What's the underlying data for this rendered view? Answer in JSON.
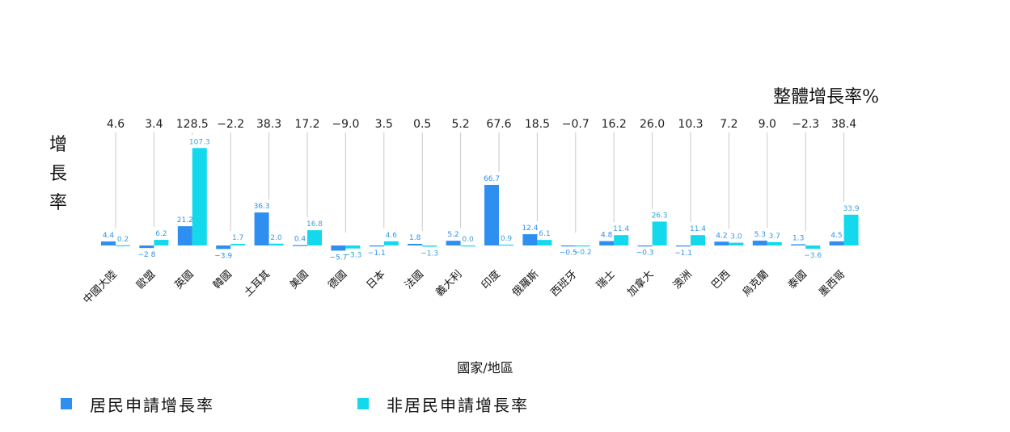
{
  "chart_data": {
    "type": "bar",
    "title": "整體增長率%",
    "ylabel": "增長率",
    "xlabel": "國家/地區",
    "categories": [
      "中國大陸",
      "歐盟",
      "英國",
      "韓國",
      "土耳其",
      "美國",
      "德國",
      "日本",
      "法國",
      "義大利",
      "印度",
      "俄羅斯",
      "西班牙",
      "瑞士",
      "加拿大",
      "澳洲",
      "巴西",
      "烏克蘭",
      "泰國",
      "墨西哥"
    ],
    "overall_growth": [
      "4.6",
      "3.4",
      "128.5",
      "−2.2",
      "38.3",
      "17.2",
      "−9.0",
      "3.5",
      "0.5",
      "5.2",
      "67.6",
      "18.5",
      "−0.7",
      "16.2",
      "26.0",
      "10.3",
      "7.2",
      "9.0",
      "−2.3",
      "38.4"
    ],
    "series": [
      {
        "name": "居民申請增長率",
        "color": "#2f8ff0",
        "values": [
          4.4,
          -2.8,
          21.2,
          -3.9,
          36.3,
          0.4,
          -5.7,
          -1.1,
          1.8,
          5.2,
          66.7,
          12.4,
          -0.5,
          4.8,
          -0.3,
          -1.1,
          4.2,
          5.3,
          1.3,
          4.5
        ],
        "labels": [
          "4.4",
          "−2 8",
          "21.2",
          "−3.9",
          "36.3",
          "0.4",
          "−5.7",
          "−1.1",
          "1.8",
          "5.2",
          "66.7",
          "12.4",
          "−0.5",
          "4.8",
          "−0.3",
          "−1.1",
          "4.2",
          "5.3",
          "1.3",
          "4.5"
        ]
      },
      {
        "name": "非居民申請增長率",
        "color": "#14d9ec",
        "values": [
          0.2,
          6.2,
          107.3,
          1.7,
          2.0,
          16.8,
          -3.3,
          4.6,
          -1.3,
          0.0,
          0.9,
          6.1,
          -0.2,
          11.4,
          26.3,
          11.4,
          3.0,
          3.7,
          -3.6,
          33.9
        ],
        "labels": [
          "0.2",
          "6.2",
          "107.3",
          "1.7",
          "2.0",
          "16.8",
          "−3.3",
          "4.6",
          "−1.3",
          "0.0",
          "0.9",
          "6.1",
          "−0.2",
          "11.4",
          "26.3",
          "11.4",
          "3.0",
          "3.7",
          "−3.6",
          "33.9"
        ]
      }
    ],
    "grid": false,
    "legend_position": "bottom-left"
  }
}
